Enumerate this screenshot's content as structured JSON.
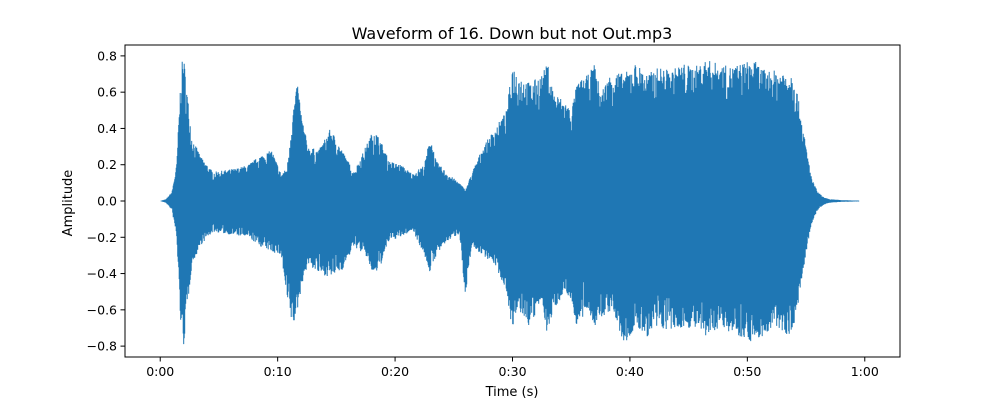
{
  "chart_data": {
    "type": "area",
    "title": "Waveform of 16. Down but not Out.mp3",
    "xlabel": "Time (s)",
    "ylabel": "Amplitude",
    "xlim": [
      -3,
      63
    ],
    "ylim": [
      -0.86,
      0.86
    ],
    "x_ticks": [
      0,
      10,
      20,
      30,
      40,
      50,
      60
    ],
    "x_tick_labels": [
      "0:00",
      "0:10",
      "0:20",
      "0:30",
      "0:40",
      "0:50",
      "1:00"
    ],
    "y_ticks": [
      -0.8,
      -0.6,
      -0.4,
      -0.2,
      0.0,
      0.2,
      0.4,
      0.6,
      0.8
    ],
    "y_tick_labels": [
      "−0.8",
      "−0.6",
      "−0.4",
      "−0.2",
      "0.0",
      "0.2",
      "0.4",
      "0.6",
      "0.8"
    ],
    "grid": false,
    "color": "#1f77b4",
    "series": [
      {
        "x": [
          0,
          0.5,
          1.0,
          1.4,
          1.8,
          2.0,
          2.3,
          2.7,
          3.5,
          4.5,
          5.5,
          6.5,
          7.5,
          8.5,
          9.5,
          10.3,
          10.8,
          11.3,
          11.7,
          12.1,
          12.6,
          13.5,
          14.5,
          15.5,
          16.5,
          17.5,
          18.2,
          18.8,
          19.5,
          20.5,
          21.5,
          22.5,
          23.0,
          23.5,
          24.5,
          25.5,
          26.0,
          26.5,
          27.5,
          28.5,
          29.5,
          30.0,
          30.5,
          31.5,
          32.5,
          33.0,
          33.5,
          34.5,
          35.0,
          35.5,
          36.5,
          37.0,
          37.5,
          38.5,
          39.5,
          40.5,
          41.5,
          42.5,
          43.5,
          44.5,
          45.5,
          46.5,
          47.5,
          48.5,
          49.5,
          50.5,
          51.5,
          52.5,
          53.5,
          54.0,
          54.5,
          55.0,
          55.5,
          56.0,
          56.5,
          57.0,
          58.0,
          59.0,
          59.5
        ],
        "upper": [
          0.0,
          0.01,
          0.05,
          0.2,
          0.75,
          0.8,
          0.6,
          0.35,
          0.24,
          0.16,
          0.17,
          0.18,
          0.2,
          0.25,
          0.28,
          0.15,
          0.18,
          0.5,
          0.65,
          0.45,
          0.3,
          0.28,
          0.4,
          0.28,
          0.16,
          0.3,
          0.4,
          0.33,
          0.22,
          0.2,
          0.15,
          0.2,
          0.36,
          0.22,
          0.15,
          0.1,
          0.06,
          0.15,
          0.3,
          0.4,
          0.5,
          0.75,
          0.7,
          0.65,
          0.7,
          0.76,
          0.6,
          0.55,
          0.5,
          0.65,
          0.7,
          0.76,
          0.6,
          0.72,
          0.7,
          0.76,
          0.7,
          0.74,
          0.72,
          0.76,
          0.74,
          0.78,
          0.76,
          0.74,
          0.76,
          0.78,
          0.72,
          0.72,
          0.72,
          0.7,
          0.5,
          0.3,
          0.12,
          0.05,
          0.02,
          0.01,
          0.005,
          0.003,
          0.003
        ],
        "lower": [
          0.0,
          -0.01,
          -0.05,
          -0.2,
          -0.75,
          -0.8,
          -0.6,
          -0.35,
          -0.24,
          -0.17,
          -0.18,
          -0.19,
          -0.2,
          -0.25,
          -0.28,
          -0.3,
          -0.55,
          -0.7,
          -0.6,
          -0.45,
          -0.35,
          -0.4,
          -0.42,
          -0.38,
          -0.25,
          -0.3,
          -0.42,
          -0.35,
          -0.22,
          -0.2,
          -0.16,
          -0.3,
          -0.4,
          -0.3,
          -0.22,
          -0.18,
          -0.56,
          -0.25,
          -0.3,
          -0.35,
          -0.5,
          -0.72,
          -0.6,
          -0.7,
          -0.55,
          -0.75,
          -0.6,
          -0.5,
          -0.55,
          -0.7,
          -0.6,
          -0.7,
          -0.65,
          -0.6,
          -0.8,
          -0.7,
          -0.75,
          -0.7,
          -0.72,
          -0.7,
          -0.7,
          -0.76,
          -0.7,
          -0.72,
          -0.75,
          -0.78,
          -0.74,
          -0.7,
          -0.74,
          -0.7,
          -0.5,
          -0.3,
          -0.12,
          -0.05,
          -0.02,
          -0.01,
          -0.005,
          -0.003,
          -0.003
        ]
      }
    ]
  }
}
